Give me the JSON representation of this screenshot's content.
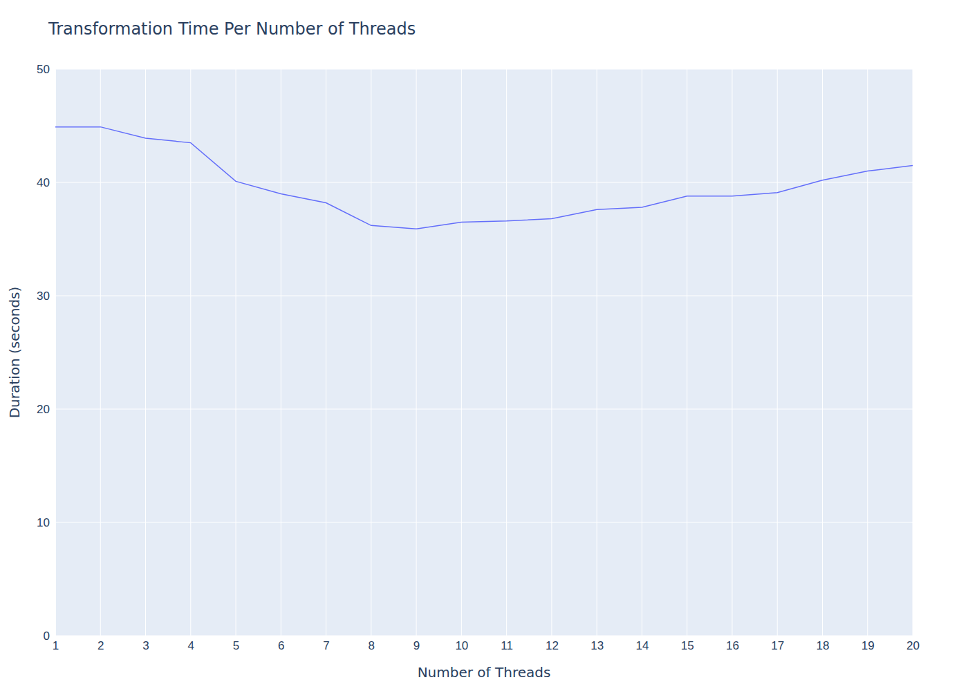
{
  "chart_data": {
    "type": "line",
    "title": "Transformation Time Per Number of Threads",
    "x_label": "Number of Threads",
    "y_label": "Duration (seconds)",
    "x": [
      1,
      2,
      3,
      4,
      5,
      6,
      7,
      8,
      9,
      10,
      11,
      12,
      13,
      14,
      15,
      16,
      17,
      18,
      19,
      20
    ],
    "values": [
      44.9,
      44.9,
      43.9,
      43.5,
      40.1,
      39.0,
      38.2,
      36.2,
      35.9,
      36.5,
      36.6,
      36.8,
      37.6,
      37.8,
      38.8,
      38.8,
      39.1,
      40.2,
      41.0,
      41.5
    ],
    "color": "#636efa",
    "xlim": [
      1,
      20
    ],
    "xticks": [
      1,
      2,
      3,
      4,
      5,
      6,
      7,
      8,
      9,
      10,
      11,
      12,
      13,
      14,
      15,
      16,
      17,
      18,
      19,
      20
    ],
    "ylim": [
      0,
      50
    ],
    "yticks": [
      0,
      10,
      20,
      30,
      40,
      50
    ],
    "grid": true
  }
}
